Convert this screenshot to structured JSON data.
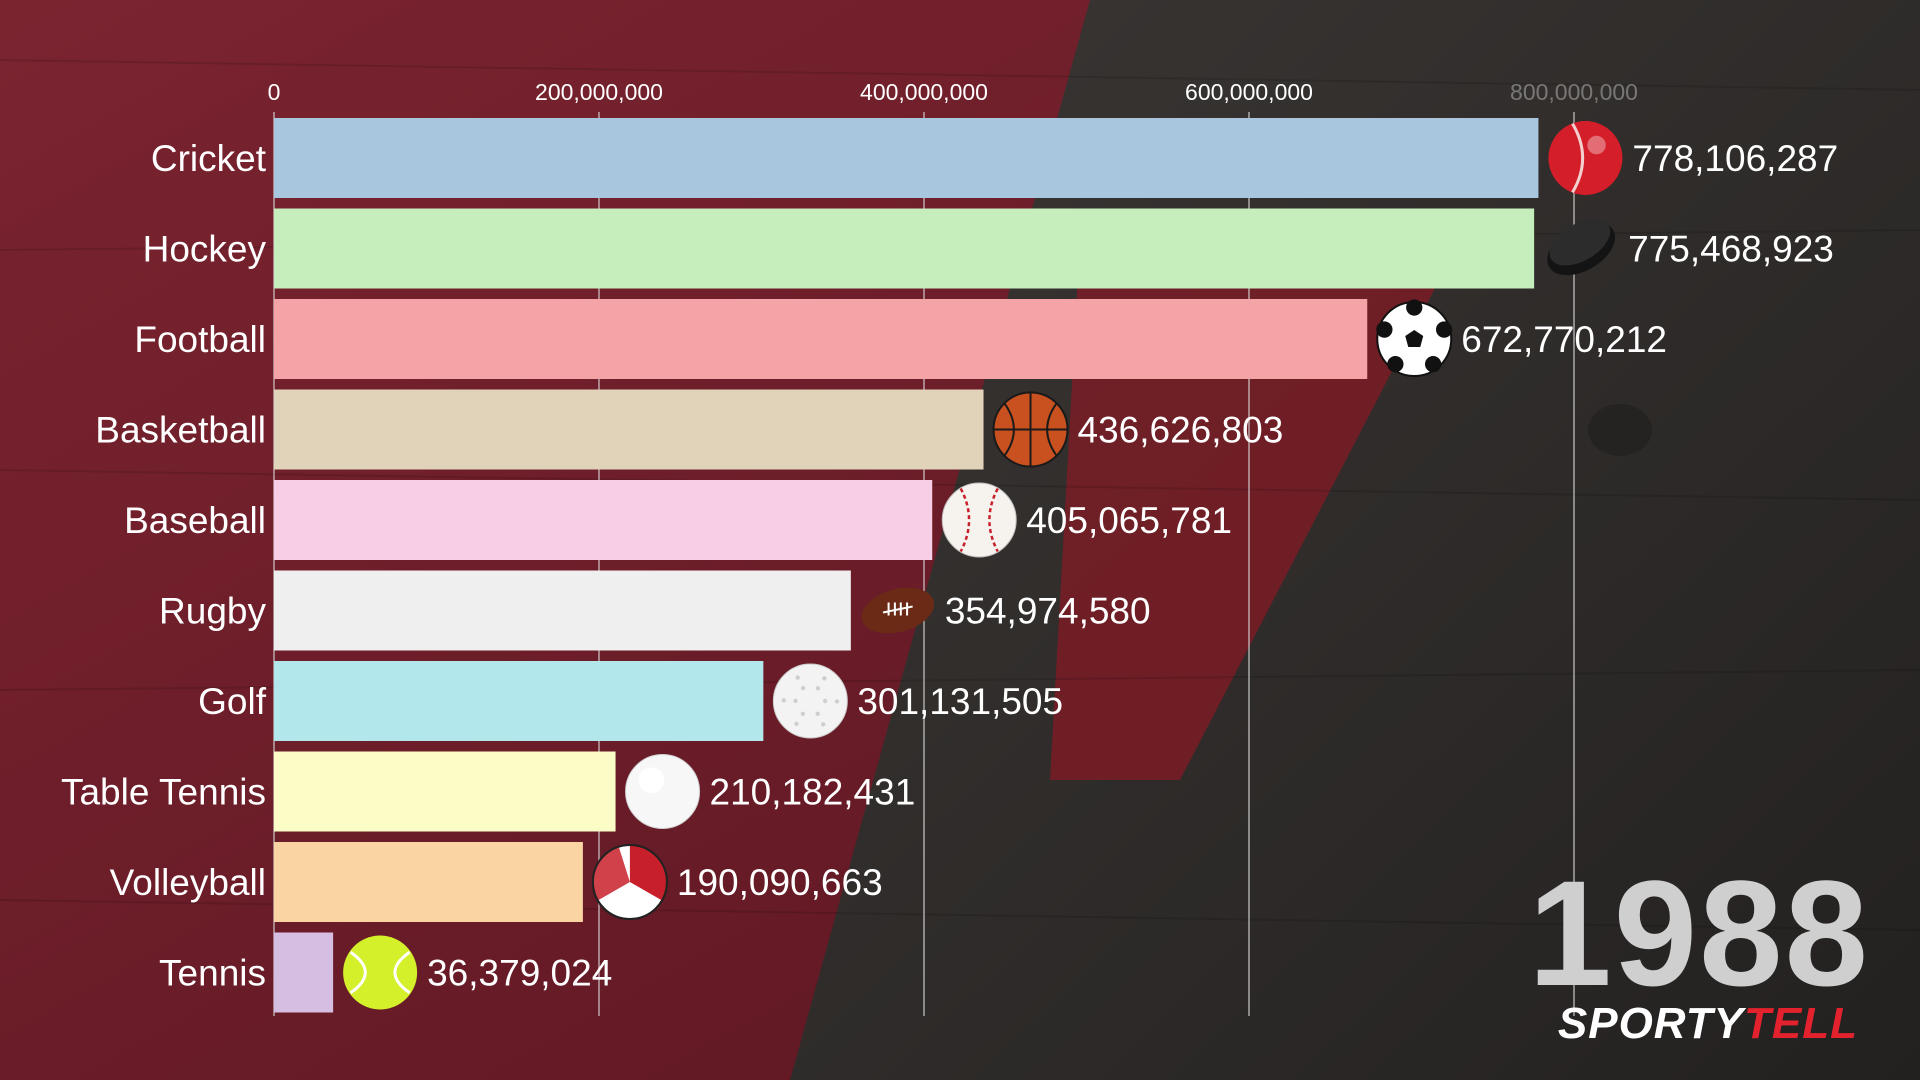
{
  "chart_data": {
    "type": "bar",
    "orientation": "horizontal",
    "categories": [
      "Cricket",
      "Hockey",
      "Football",
      "Basketball",
      "Baseball",
      "Rugby",
      "Golf",
      "Table Tennis",
      "Volleyball",
      "Tennis"
    ],
    "values": [
      778106287,
      775468923,
      672770212,
      436626803,
      405065781,
      354974580,
      301131505,
      210182431,
      190090663,
      36379024
    ],
    "value_labels": [
      "778,106,287",
      "775,468,923",
      "672,770,212",
      "436,626,803",
      "405,065,781",
      "354,974,580",
      "301,131,505",
      "210,182,431",
      "190,090,663",
      "36,379,024"
    ],
    "colors": [
      "#a9c6df",
      "#c6eebd",
      "#f4a3a6",
      "#e1d3b9",
      "#f8cde6",
      "#efefef",
      "#b2e8ec",
      "#fcfdc6",
      "#fbd4a3",
      "#d6bde2"
    ],
    "icons": [
      "cricket-ball-icon",
      "hockey-puck-icon",
      "soccer-ball-icon",
      "basketball-icon",
      "baseball-icon",
      "rugby-ball-icon",
      "golf-ball-icon",
      "table-tennis-ball-icon",
      "volleyball-icon",
      "tennis-ball-icon"
    ],
    "xticks": [
      0,
      200000000,
      400000000,
      600000000,
      800000000
    ],
    "xtick_labels": [
      "0",
      "200,000,000",
      "400,000,000",
      "600,000,000",
      "800,000,000"
    ],
    "xlim": [
      0,
      800000000
    ],
    "grid": true,
    "xaxis_position": "top"
  },
  "year": "1988",
  "brand": {
    "part1": "SPORTY",
    "part2": "TELL",
    "color_part2": "#e3222e"
  },
  "theme": {
    "background_red": "#6b1c26",
    "background_dark": "#2c2a29",
    "label_color": "#ffffff",
    "grid_color": "#d9d9d9"
  }
}
